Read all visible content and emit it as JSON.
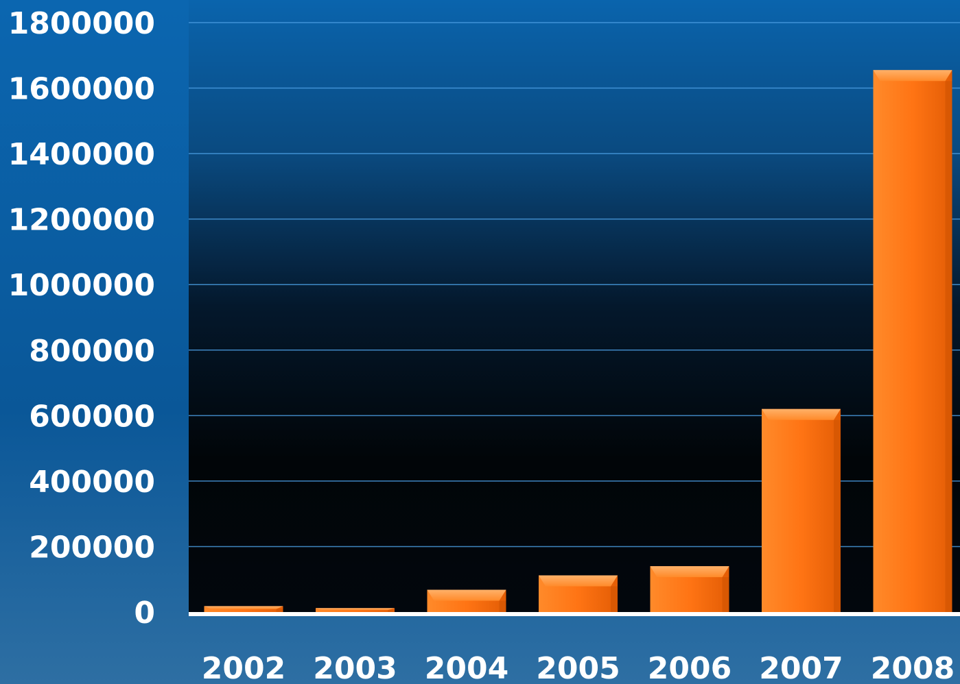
{
  "chart_data": {
    "type": "bar",
    "categories": [
      "2002",
      "2003",
      "2004",
      "2005",
      "2006",
      "2007",
      "2008"
    ],
    "values": [
      18000,
      12000,
      68000,
      112000,
      140000,
      620000,
      1655000
    ],
    "title": "",
    "xlabel": "",
    "ylabel": "",
    "ylim": [
      0,
      1800000
    ],
    "yticks": [
      0,
      200000,
      400000,
      600000,
      800000,
      1000000,
      1200000,
      1400000,
      1600000,
      1800000
    ],
    "ytick_labels": [
      "0",
      "200000",
      "400000",
      "600000",
      "800000",
      "1000000",
      "1200000",
      "1400000",
      "1600000",
      "1800000"
    ],
    "grid": true,
    "legend": "none",
    "colors": {
      "bar": "#ff7a1a",
      "gridline": "#4a9ce0",
      "axis": "#ffffff",
      "text": "#ffffff",
      "background_edge": "#0b63a8",
      "plot_top": "#0a5fa6",
      "plot_bottom": "#02060c"
    }
  }
}
